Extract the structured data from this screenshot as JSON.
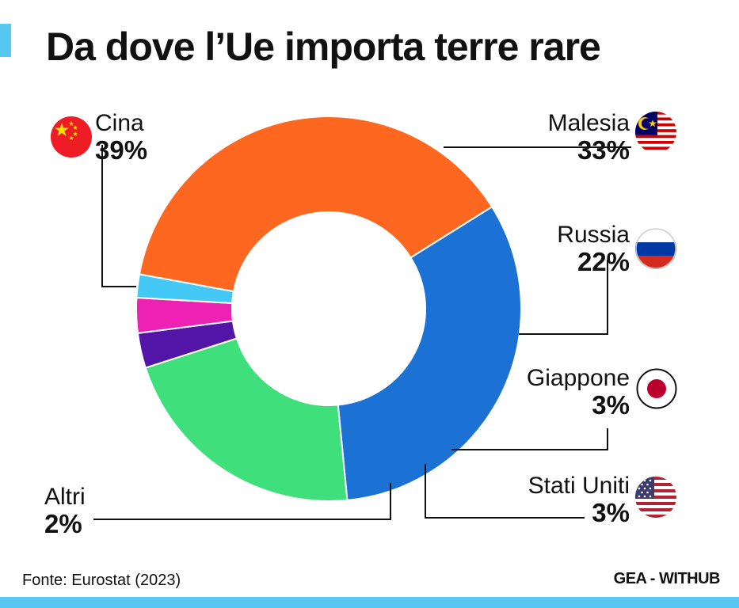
{
  "title": "Da dove l’Ue importa terre rare",
  "source": "Fonte: Eurostat (2023)",
  "brand": "GEA - WITHUB",
  "colors": {
    "accent": "#57c8f2",
    "cina": "#fd6720",
    "malesia": "#1b71d4",
    "russia": "#3fe07c",
    "giappone": "#5314a8",
    "stati_uniti": "#ee22b2",
    "altri": "#44c8f5"
  },
  "chart_data": {
    "type": "pie",
    "title": "Da dove l’Ue importa terre rare",
    "donut": true,
    "slices": [
      {
        "label": "Malesia",
        "value": 33,
        "value_label": "33%",
        "color": "#1b71d4",
        "flag_icon": "malaysia-flag-icon"
      },
      {
        "label": "Russia",
        "value": 22,
        "value_label": "22%",
        "color": "#3fe07c",
        "flag_icon": "russia-flag-icon"
      },
      {
        "label": "Giappone",
        "value": 3,
        "value_label": "3%",
        "color": "#5314a8",
        "flag_icon": "japan-flag-icon"
      },
      {
        "label": "Stati Uniti",
        "value": 3,
        "value_label": "3%",
        "color": "#ee22b2",
        "flag_icon": "usa-flag-icon"
      },
      {
        "label": "Altri",
        "value": 2,
        "value_label": "2%",
        "color": "#44c8f5",
        "flag_icon": ""
      },
      {
        "label": "Cina",
        "value": 39,
        "value_label": "39%",
        "color": "#fd6720",
        "flag_icon": "china-flag-icon"
      }
    ]
  }
}
